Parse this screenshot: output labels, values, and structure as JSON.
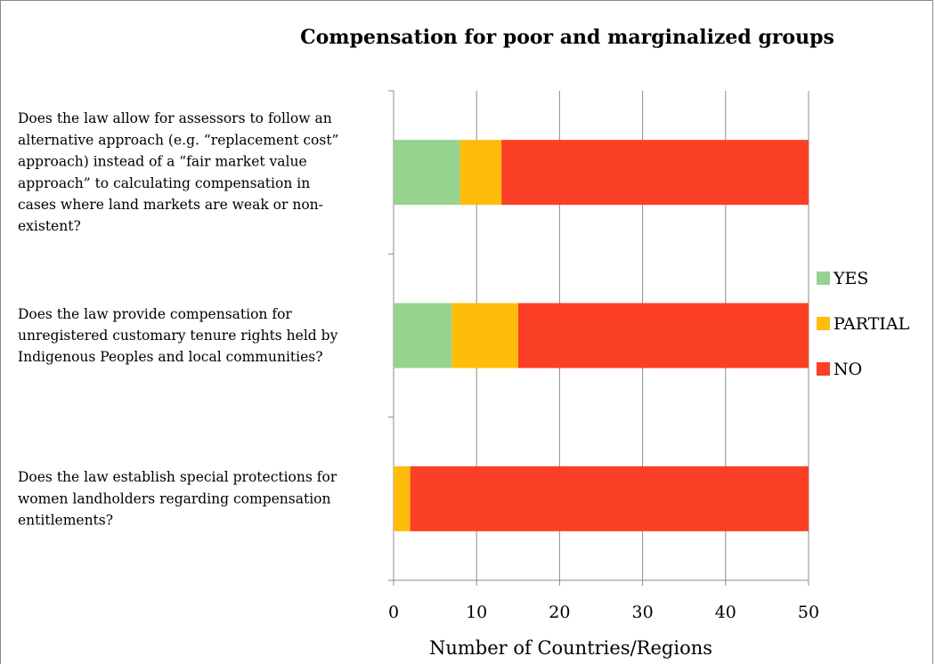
{
  "chart_data": {
    "type": "bar",
    "orientation": "horizontal",
    "stacked": true,
    "title": "Compensation for poor and marginalized groups",
    "xlabel": "Number of Countries/Regions",
    "ylabel": "",
    "xlim": [
      0,
      50
    ],
    "xticks": [
      "0",
      "10",
      "20",
      "30",
      "40",
      "50"
    ],
    "grid": true,
    "legend_position": "right",
    "categories": [
      [
        "Does the law allow for assessors to follow an",
        "alternative approach (e.g. “replacement cost”",
        "approach) instead of a “fair market value",
        "approach” to calculating compensation in",
        "cases where land markets are weak or non-",
        "existent?"
      ],
      [
        "Does the law provide compensation for",
        "unregistered customary tenure rights held by",
        "Indigenous Peoples and local communities?"
      ],
      [
        "Does the law establish special protections for",
        "women landholders regarding compensation",
        "entitlements?"
      ]
    ],
    "series": [
      {
        "name": "YES",
        "color": "#95d38f",
        "values": [
          8,
          7,
          0
        ]
      },
      {
        "name": "PARTIAL",
        "color": "#fdbd0a",
        "values": [
          5,
          8,
          2
        ]
      },
      {
        "name": "NO",
        "color": "#fb4025",
        "values": [
          37,
          35,
          48
        ]
      }
    ]
  }
}
